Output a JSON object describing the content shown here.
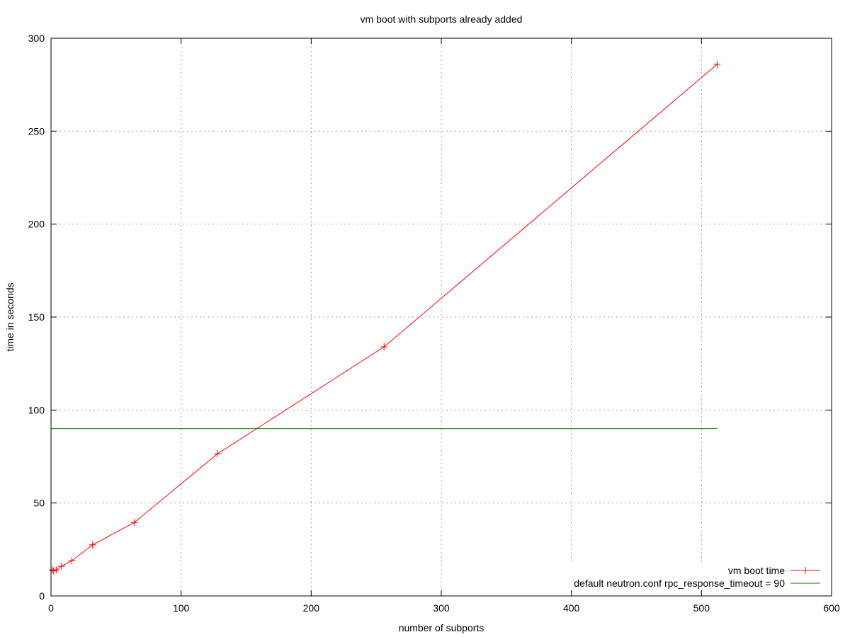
{
  "chart_data": {
    "type": "line",
    "title": "vm boot with subports already added",
    "xlabel": "number of subports",
    "ylabel": "time in seconds",
    "xlim": [
      0,
      600
    ],
    "ylim": [
      0,
      300
    ],
    "x_ticks": [
      "0",
      "100",
      "200",
      "300",
      "400",
      "500",
      "600"
    ],
    "y_ticks": [
      "0",
      "50",
      "100",
      "150",
      "200",
      "250",
      "300"
    ],
    "grid": true,
    "legend_position": "bottom-right",
    "series": [
      {
        "name": "vm boot time",
        "color": "#ff0000",
        "marker": "plus",
        "x": [
          1,
          2,
          4,
          8,
          16,
          32,
          64,
          128,
          256,
          512
        ],
        "y": [
          14,
          13.5,
          14,
          16,
          19,
          27.5,
          39.5,
          76.5,
          134,
          286
        ]
      },
      {
        "name": "default neutron.conf rpc_response_timeout = 90",
        "color": "#008000",
        "marker": "none",
        "x": [
          0,
          512
        ],
        "y": [
          90,
          90
        ]
      }
    ]
  }
}
